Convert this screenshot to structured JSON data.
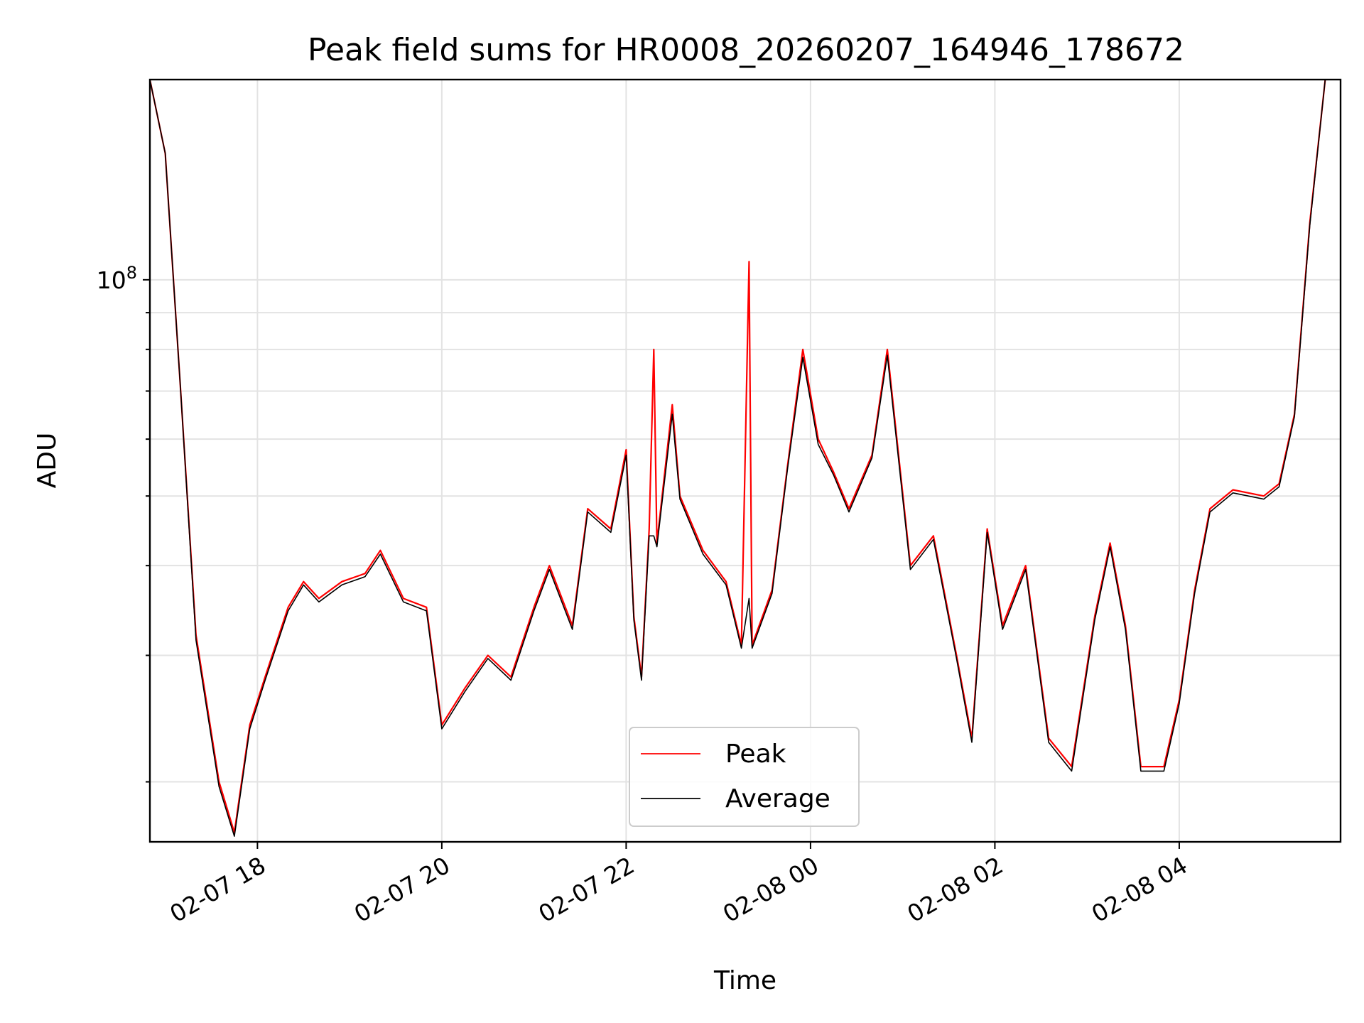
{
  "chart_data": {
    "type": "line",
    "title": "Peak field sums for HR0008_20260207_164946_178672",
    "xlabel": "Time",
    "ylabel": "ADU",
    "x_scale": "time",
    "y_scale": "log",
    "xlim": [
      "2026-02-07 16:50",
      "2026-02-08 05:45"
    ],
    "ylim": [
      16500000,
      190000000
    ],
    "grid": true,
    "legend": {
      "placement": "lower-center"
    },
    "x_ticks": [
      {
        "value": "2026-02-07 18:00",
        "label": "02-07 18"
      },
      {
        "value": "2026-02-07 20:00",
        "label": "02-07 20"
      },
      {
        "value": "2026-02-07 22:00",
        "label": "02-07 22"
      },
      {
        "value": "2026-02-08 00:00",
        "label": "02-08 00"
      },
      {
        "value": "2026-02-08 02:00",
        "label": "02-08 02"
      },
      {
        "value": "2026-02-08 04:00",
        "label": "02-08 04"
      }
    ],
    "y_major_ticks": [
      {
        "value": 100000000,
        "base": "10",
        "exp": "8"
      }
    ],
    "y_minor_ticks": [
      20000000,
      30000000,
      40000000,
      50000000,
      60000000,
      70000000,
      80000000,
      90000000,
      200000000
    ],
    "series": [
      {
        "name": "Peak",
        "color": "#ff0000",
        "points": [
          [
            "2026-02-07 16:50",
            190000000
          ],
          [
            "2026-02-07 17:00",
            150000000
          ],
          [
            "2026-02-07 17:10",
            70000000
          ],
          [
            "2026-02-07 17:20",
            32000000
          ],
          [
            "2026-02-07 17:35",
            20000000
          ],
          [
            "2026-02-07 17:45",
            17000000
          ],
          [
            "2026-02-07 17:55",
            24000000
          ],
          [
            "2026-02-07 18:05",
            28000000
          ],
          [
            "2026-02-07 18:20",
            35000000
          ],
          [
            "2026-02-07 18:30",
            38000000
          ],
          [
            "2026-02-07 18:40",
            36000000
          ],
          [
            "2026-02-07 18:55",
            38000000
          ],
          [
            "2026-02-07 19:10",
            39000000
          ],
          [
            "2026-02-07 19:20",
            42000000
          ],
          [
            "2026-02-07 19:35",
            36000000
          ],
          [
            "2026-02-07 19:50",
            35000000
          ],
          [
            "2026-02-07 20:00",
            24000000
          ],
          [
            "2026-02-07 20:15",
            27000000
          ],
          [
            "2026-02-07 20:30",
            30000000
          ],
          [
            "2026-02-07 20:45",
            28000000
          ],
          [
            "2026-02-07 21:00",
            35000000
          ],
          [
            "2026-02-07 21:10",
            40000000
          ],
          [
            "2026-02-07 21:25",
            33000000
          ],
          [
            "2026-02-07 21:35",
            48000000
          ],
          [
            "2026-02-07 21:50",
            45000000
          ],
          [
            "2026-02-07 22:00",
            58000000
          ],
          [
            "2026-02-07 22:05",
            34000000
          ],
          [
            "2026-02-07 22:10",
            28000000
          ],
          [
            "2026-02-07 22:15",
            45000000
          ],
          [
            "2026-02-07 22:18",
            80000000
          ],
          [
            "2026-02-07 22:20",
            43000000
          ],
          [
            "2026-02-07 22:30",
            67000000
          ],
          [
            "2026-02-07 22:35",
            50000000
          ],
          [
            "2026-02-07 22:50",
            42000000
          ],
          [
            "2026-02-07 23:05",
            38000000
          ],
          [
            "2026-02-07 23:15",
            31000000
          ],
          [
            "2026-02-07 23:20",
            106000000
          ],
          [
            "2026-02-07 23:22",
            31000000
          ],
          [
            "2026-02-07 23:35",
            37000000
          ],
          [
            "2026-02-07 23:45",
            55000000
          ],
          [
            "2026-02-07 23:55",
            80000000
          ],
          [
            "2026-02-08 00:05",
            60000000
          ],
          [
            "2026-02-08 00:15",
            54000000
          ],
          [
            "2026-02-08 00:25",
            48000000
          ],
          [
            "2026-02-08 00:40",
            57000000
          ],
          [
            "2026-02-08 00:50",
            80000000
          ],
          [
            "2026-02-08 01:05",
            40000000
          ],
          [
            "2026-02-08 01:20",
            44000000
          ],
          [
            "2026-02-08 01:35",
            30000000
          ],
          [
            "2026-02-08 01:45",
            23000000
          ],
          [
            "2026-02-08 01:55",
            45000000
          ],
          [
            "2026-02-08 02:05",
            33000000
          ],
          [
            "2026-02-08 02:20",
            40000000
          ],
          [
            "2026-02-08 02:35",
            23000000
          ],
          [
            "2026-02-08 02:50",
            21000000
          ],
          [
            "2026-02-08 03:05",
            34000000
          ],
          [
            "2026-02-08 03:15",
            43000000
          ],
          [
            "2026-02-08 03:25",
            33000000
          ],
          [
            "2026-02-08 03:35",
            21000000
          ],
          [
            "2026-02-08 03:50",
            21000000
          ],
          [
            "2026-02-08 04:00",
            26000000
          ],
          [
            "2026-02-08 04:10",
            37000000
          ],
          [
            "2026-02-08 04:20",
            48000000
          ],
          [
            "2026-02-08 04:35",
            51000000
          ],
          [
            "2026-02-08 04:55",
            50000000
          ],
          [
            "2026-02-08 05:05",
            52000000
          ],
          [
            "2026-02-08 05:15",
            65000000
          ],
          [
            "2026-02-08 05:25",
            120000000
          ],
          [
            "2026-02-08 05:35",
            190000000
          ]
        ]
      },
      {
        "name": "Average",
        "color": "#000000",
        "points": [
          [
            "2026-02-07 16:50",
            190000000
          ],
          [
            "2026-02-07 17:00",
            150000000
          ],
          [
            "2026-02-07 17:10",
            70000000
          ],
          [
            "2026-02-07 17:20",
            31500000
          ],
          [
            "2026-02-07 17:35",
            19700000
          ],
          [
            "2026-02-07 17:45",
            16800000
          ],
          [
            "2026-02-07 17:55",
            23700000
          ],
          [
            "2026-02-07 18:05",
            27700000
          ],
          [
            "2026-02-07 18:20",
            34600000
          ],
          [
            "2026-02-07 18:30",
            37600000
          ],
          [
            "2026-02-07 18:40",
            35600000
          ],
          [
            "2026-02-07 18:55",
            37600000
          ],
          [
            "2026-02-07 19:10",
            38600000
          ],
          [
            "2026-02-07 19:20",
            41500000
          ],
          [
            "2026-02-07 19:35",
            35600000
          ],
          [
            "2026-02-07 19:50",
            34600000
          ],
          [
            "2026-02-07 20:00",
            23700000
          ],
          [
            "2026-02-07 20:15",
            26700000
          ],
          [
            "2026-02-07 20:30",
            29700000
          ],
          [
            "2026-02-07 20:45",
            27700000
          ],
          [
            "2026-02-07 21:00",
            34600000
          ],
          [
            "2026-02-07 21:10",
            39500000
          ],
          [
            "2026-02-07 21:25",
            32600000
          ],
          [
            "2026-02-07 21:35",
            47500000
          ],
          [
            "2026-02-07 21:50",
            44500000
          ],
          [
            "2026-02-07 22:00",
            57000000
          ],
          [
            "2026-02-07 22:05",
            33600000
          ],
          [
            "2026-02-07 22:10",
            27700000
          ],
          [
            "2026-02-07 22:15",
            44000000
          ],
          [
            "2026-02-07 22:18",
            44000000
          ],
          [
            "2026-02-07 22:20",
            42500000
          ],
          [
            "2026-02-07 22:30",
            65000000
          ],
          [
            "2026-02-07 22:35",
            49500000
          ],
          [
            "2026-02-07 22:50",
            41500000
          ],
          [
            "2026-02-07 23:05",
            37600000
          ],
          [
            "2026-02-07 23:15",
            30700000
          ],
          [
            "2026-02-07 23:20",
            36000000
          ],
          [
            "2026-02-07 23:22",
            30700000
          ],
          [
            "2026-02-07 23:35",
            36600000
          ],
          [
            "2026-02-07 23:45",
            54500000
          ],
          [
            "2026-02-07 23:55",
            78000000
          ],
          [
            "2026-02-08 00:05",
            59000000
          ],
          [
            "2026-02-08 00:15",
            53500000
          ],
          [
            "2026-02-08 00:25",
            47500000
          ],
          [
            "2026-02-08 00:40",
            56500000
          ],
          [
            "2026-02-08 00:50",
            78500000
          ],
          [
            "2026-02-08 01:05",
            39500000
          ],
          [
            "2026-02-08 01:20",
            43500000
          ],
          [
            "2026-02-08 01:35",
            29700000
          ],
          [
            "2026-02-08 01:45",
            22700000
          ],
          [
            "2026-02-08 01:55",
            44500000
          ],
          [
            "2026-02-08 02:05",
            32600000
          ],
          [
            "2026-02-08 02:20",
            39500000
          ],
          [
            "2026-02-08 02:35",
            22700000
          ],
          [
            "2026-02-08 02:50",
            20700000
          ],
          [
            "2026-02-08 03:05",
            33600000
          ],
          [
            "2026-02-08 03:15",
            42500000
          ],
          [
            "2026-02-08 03:25",
            32600000
          ],
          [
            "2026-02-08 03:35",
            20700000
          ],
          [
            "2026-02-08 03:50",
            20700000
          ],
          [
            "2026-02-08 04:00",
            25700000
          ],
          [
            "2026-02-08 04:10",
            36600000
          ],
          [
            "2026-02-08 04:20",
            47500000
          ],
          [
            "2026-02-08 04:35",
            50500000
          ],
          [
            "2026-02-08 04:55",
            49500000
          ],
          [
            "2026-02-08 05:05",
            51500000
          ],
          [
            "2026-02-08 05:15",
            64500000
          ],
          [
            "2026-02-08 05:25",
            119000000
          ],
          [
            "2026-02-08 05:35",
            190000000
          ]
        ]
      }
    ]
  }
}
